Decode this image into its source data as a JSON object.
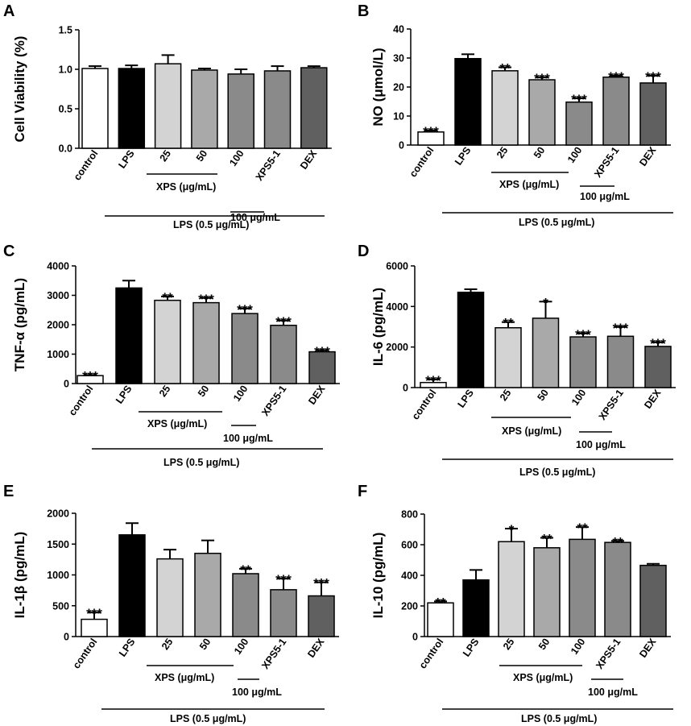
{
  "chart_data": [
    {
      "panel": "A",
      "type": "bar",
      "ylabel": "Cell Viability (%)",
      "ylim": [
        0,
        1.5
      ],
      "yticks": [
        0.0,
        0.5,
        1.0,
        1.5
      ],
      "ytick_labels": [
        "0.0",
        "0.5",
        "1.0",
        "1.5"
      ],
      "categories": [
        "control",
        "LPS",
        "25",
        "50",
        "100",
        "XPS5-1",
        "DEX"
      ],
      "values": [
        1.01,
        1.01,
        1.07,
        0.99,
        0.94,
        0.98,
        1.02
      ],
      "errors": [
        0.03,
        0.04,
        0.11,
        0.02,
        0.06,
        0.06,
        0.02
      ],
      "colors": [
        "#ffffff",
        "#000000",
        "#d3d3d3",
        "#a9a9a9",
        "#8a8a8a",
        "#8a8a8a",
        "#606060"
      ],
      "significance": [
        "",
        "",
        "",
        "",
        "",
        "",
        ""
      ],
      "groups": {
        "xps": "XPS (μg/mL)",
        "conc": "100 μg/mL",
        "lps": "LPS (0.5 μg/mL)"
      }
    },
    {
      "panel": "B",
      "type": "bar",
      "ylabel": "NO (μmol/L)",
      "ylim": [
        0,
        40
      ],
      "yticks": [
        0,
        10,
        20,
        30,
        40
      ],
      "ytick_labels": [
        "0",
        "10",
        "20",
        "30",
        "40"
      ],
      "categories": [
        "control",
        "LPS",
        "25",
        "50",
        "100",
        "XPS5-1",
        "DEX"
      ],
      "values": [
        4.5,
        29.8,
        25.6,
        22.5,
        14.8,
        23.4,
        21.4
      ],
      "errors": [
        0.5,
        1.5,
        1.2,
        0.8,
        1.3,
        0.5,
        2.5
      ],
      "colors": [
        "#ffffff",
        "#000000",
        "#d3d3d3",
        "#a9a9a9",
        "#8a8a8a",
        "#8a8a8a",
        "#606060"
      ],
      "significance": [
        "***",
        "",
        "**",
        "***",
        "***",
        "***",
        "***"
      ],
      "groups": {
        "xps": "XPS (μg/mL)",
        "conc": "100 μg/mL",
        "lps": "LPS (0.5 μg/mL)"
      }
    },
    {
      "panel": "C",
      "type": "bar",
      "ylabel": "TNF-α (pg/mL)",
      "ylim": [
        0,
        4000
      ],
      "yticks": [
        0,
        1000,
        2000,
        3000,
        4000
      ],
      "ytick_labels": [
        "0",
        "1000",
        "2000",
        "3000",
        "4000"
      ],
      "categories": [
        "control",
        "LPS",
        "25",
        "50",
        "100",
        "XPS5-1",
        "DEX"
      ],
      "values": [
        270,
        3250,
        2830,
        2750,
        2380,
        1980,
        1080
      ],
      "errors": [
        20,
        250,
        130,
        160,
        170,
        160,
        50
      ],
      "colors": [
        "#ffffff",
        "#000000",
        "#d3d3d3",
        "#a9a9a9",
        "#8a8a8a",
        "#8a8a8a",
        "#606060"
      ],
      "significance": [
        "***",
        "",
        "**",
        "***",
        "***",
        "***",
        "***"
      ],
      "groups": {
        "xps": "XPS (μg/mL)",
        "conc": "100 μg/mL",
        "lps": "LPS (0.5 μg/mL)"
      }
    },
    {
      "panel": "D",
      "type": "bar",
      "ylabel": "IL-6 (pg/mL)",
      "ylim": [
        0,
        6000
      ],
      "yticks": [
        0,
        2000,
        4000,
        6000
      ],
      "ytick_labels": [
        "0",
        "2000",
        "4000",
        "6000"
      ],
      "categories": [
        "control",
        "LPS",
        "25",
        "50",
        "100",
        "XPS5-1",
        "DEX"
      ],
      "values": [
        250,
        4700,
        2950,
        3420,
        2500,
        2530,
        2030
      ],
      "errors": [
        150,
        150,
        280,
        820,
        170,
        460,
        200
      ],
      "colors": [
        "#ffffff",
        "#000000",
        "#d3d3d3",
        "#a9a9a9",
        "#8a8a8a",
        "#8a8a8a",
        "#606060"
      ],
      "significance": [
        "***",
        "",
        "**",
        "*",
        "***",
        "***",
        "***"
      ],
      "groups": {
        "xps": "XPS (μg/mL)",
        "conc": "100 μg/mL",
        "lps": "LPS (0.5 μg/mL)"
      }
    },
    {
      "panel": "E",
      "type": "bar",
      "ylabel": "IL-1β (pg/mL)",
      "ylim": [
        0,
        2000
      ],
      "yticks": [
        0,
        500,
        1000,
        1500,
        2000
      ],
      "ytick_labels": [
        "0",
        "500",
        "1000",
        "1500",
        "2000"
      ],
      "categories": [
        "control",
        "LPS",
        "25",
        "50",
        "100",
        "XPS5-1",
        "DEX"
      ],
      "values": [
        280,
        1650,
        1260,
        1350,
        1020,
        760,
        660
      ],
      "errors": [
        110,
        190,
        150,
        210,
        80,
        180,
        220
      ],
      "colors": [
        "#ffffff",
        "#000000",
        "#d3d3d3",
        "#a9a9a9",
        "#8a8a8a",
        "#8a8a8a",
        "#606060"
      ],
      "significance": [
        "***",
        "",
        "",
        "",
        "**",
        "***",
        "***"
      ],
      "groups": {
        "xps": "XPS (μg/mL)",
        "conc": "100 μg/mL",
        "lps": "LPS (0.5 μg/mL)"
      }
    },
    {
      "panel": "F",
      "type": "bar",
      "ylabel": "IL-10 (pg/mL)",
      "ylim": [
        0,
        800
      ],
      "yticks": [
        0,
        200,
        400,
        600,
        800
      ],
      "ytick_labels": [
        "0",
        "200",
        "400",
        "600",
        "800"
      ],
      "categories": [
        "control",
        "LPS",
        "25",
        "50",
        "100",
        "XPS5-1",
        "DEX"
      ],
      "values": [
        220,
        370,
        620,
        580,
        635,
        615,
        465
      ],
      "errors": [
        10,
        65,
        85,
        65,
        80,
        10,
        10
      ],
      "colors": [
        "#ffffff",
        "#000000",
        "#d3d3d3",
        "#a9a9a9",
        "#8a8a8a",
        "#8a8a8a",
        "#606060"
      ],
      "significance": [
        "**",
        "",
        "*",
        "**",
        "**",
        "**",
        ""
      ],
      "groups": {
        "xps": "XPS (μg/mL)",
        "conc": "100 μg/mL",
        "lps": "LPS (0.5 μg/mL)"
      }
    }
  ]
}
